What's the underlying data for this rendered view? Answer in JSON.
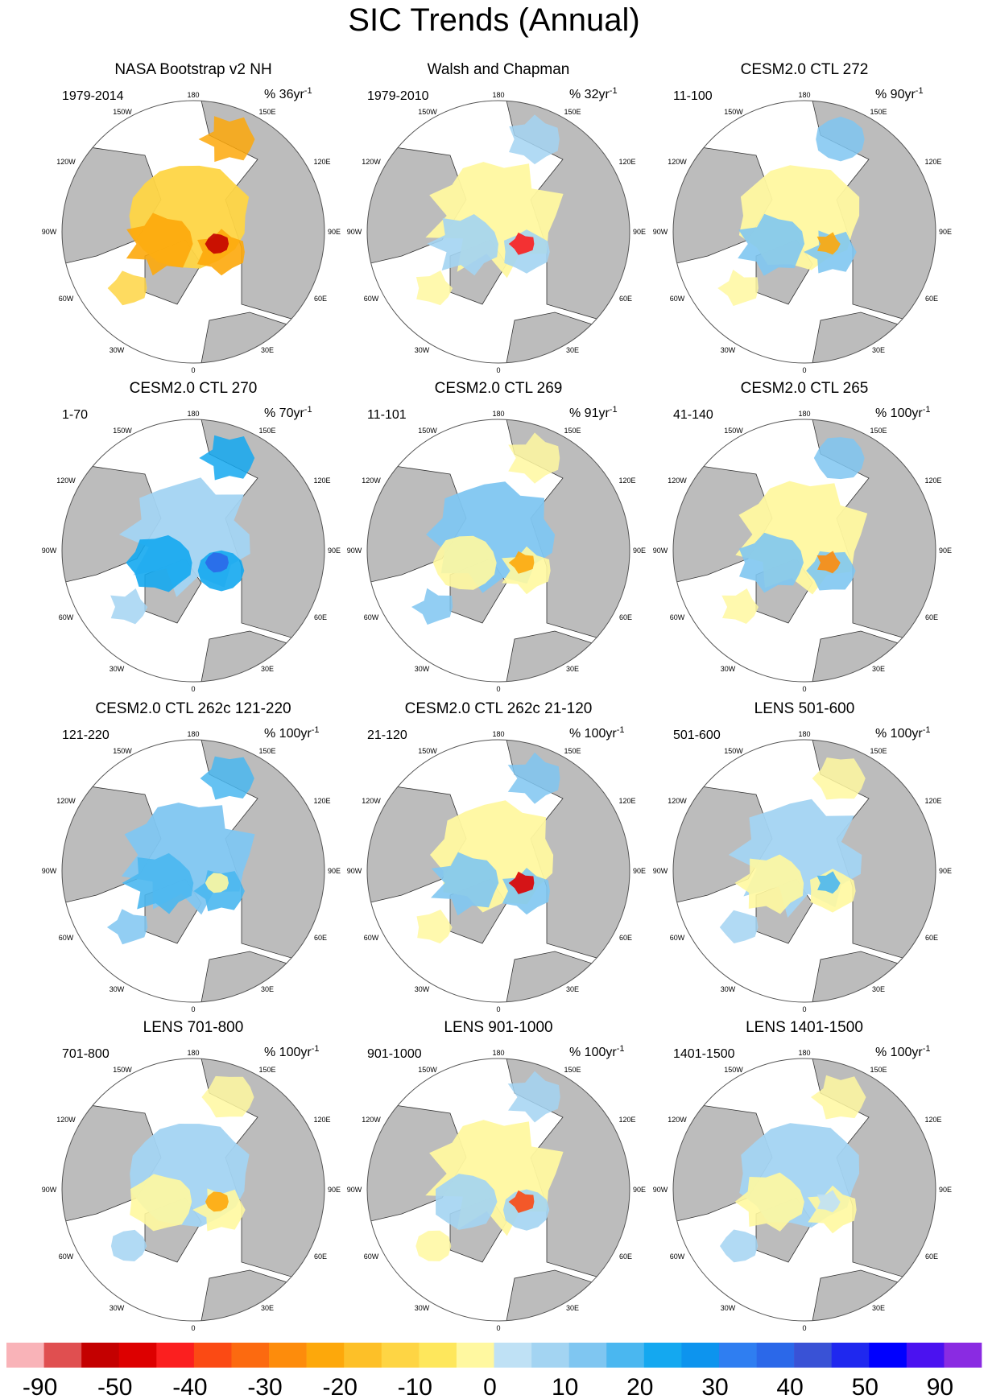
{
  "title": "SIC Trends (Annual)",
  "lon_labels": {
    "top": "180",
    "bottom": "0",
    "left_upper1": "150W",
    "left_upper2": "120W",
    "left_mid": "90W",
    "left_lower1": "60W",
    "left_lower2": "30W",
    "right_upper1": "150E",
    "right_upper2": "120E",
    "right_mid": "90E",
    "right_lower1": "60E",
    "right_lower2": "30E"
  },
  "panels": [
    {
      "title": "NASA Bootstrap v2 NH",
      "period": "1979-2014",
      "scale": "% 36yr",
      "exp": "-1"
    },
    {
      "title": "Walsh and Chapman",
      "period": "1979-2010",
      "scale": "% 32yr",
      "exp": "-1"
    },
    {
      "title": "CESM2.0 CTL 272",
      "period": "11-100",
      "scale": "% 90yr",
      "exp": "-1"
    },
    {
      "title": "CESM2.0 CTL 270",
      "period": "1-70",
      "scale": "% 70yr",
      "exp": "-1"
    },
    {
      "title": "CESM2.0 CTL 269",
      "period": "11-101",
      "scale": "% 91yr",
      "exp": "-1"
    },
    {
      "title": "CESM2.0 CTL 265",
      "period": "41-140",
      "scale": "% 100yr",
      "exp": "-1"
    },
    {
      "title": "CESM2.0 CTL 262c 121-220",
      "period": "121-220",
      "scale": "% 100yr",
      "exp": "-1"
    },
    {
      "title": "CESM2.0 CTL 262c 21-120",
      "period": "21-120",
      "scale": "% 100yr",
      "exp": "-1"
    },
    {
      "title": "LENS 501-600",
      "period": "501-600",
      "scale": "% 100yr",
      "exp": "-1"
    },
    {
      "title": "LENS 701-800",
      "period": "701-800",
      "scale": "% 100yr",
      "exp": "-1"
    },
    {
      "title": "LENS 901-1000",
      "period": "901-1000",
      "scale": "% 100yr",
      "exp": "-1"
    },
    {
      "title": "LENS 1401-1500",
      "period": "1401-1500",
      "scale": "% 100yr",
      "exp": "-1"
    }
  ],
  "colorbar": {
    "colors": [
      "#f9b3b8",
      "#e04f50",
      "#c40000",
      "#dd0000",
      "#fb1f1f",
      "#fb4a14",
      "#fc6a10",
      "#fd8c0c",
      "#fda80b",
      "#fdc028",
      "#fed544",
      "#fee75c",
      "#fff8a0",
      "#bfe1f5",
      "#a3d4f2",
      "#7fc6f1",
      "#4ab7f0",
      "#14a8f0",
      "#0d94ee",
      "#2f7ef1",
      "#2b68e9",
      "#3952d6",
      "#1f28ef",
      "#0000ff",
      "#4b12f0",
      "#8a2be2"
    ],
    "labels": [
      "-90",
      "-50",
      "-40",
      "-30",
      "-20",
      "-10",
      "0",
      "10",
      "20",
      "30",
      "40",
      "50",
      "90"
    ]
  },
  "palette": {
    "land": "#bcbcbc",
    "ocean": "#ffffff",
    "coast": "#333333"
  }
}
